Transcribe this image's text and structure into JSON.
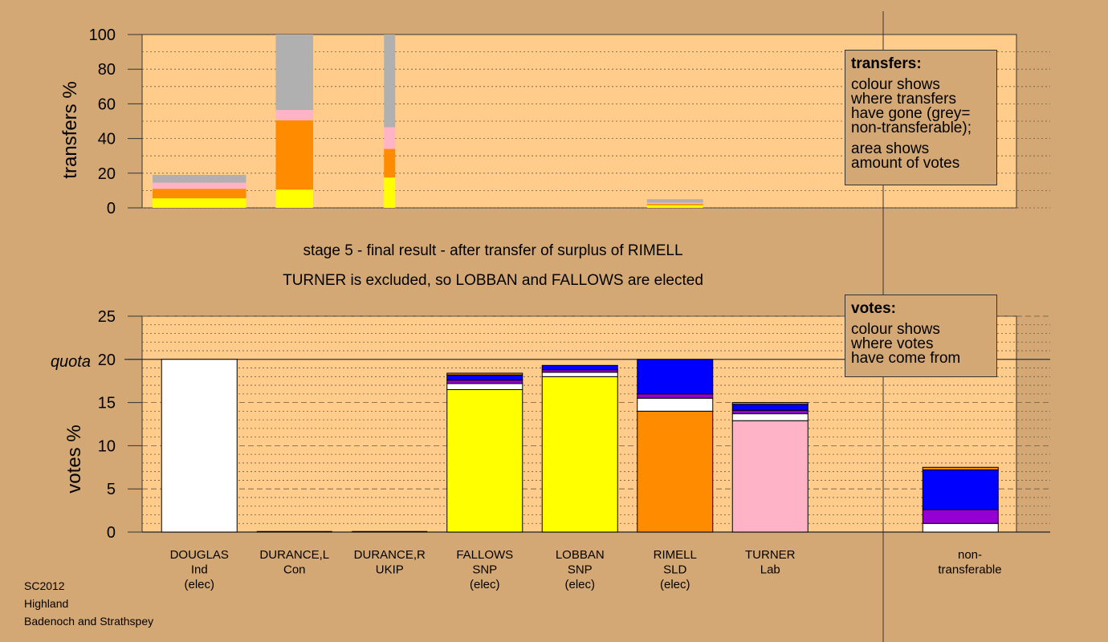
{
  "colors": {
    "background": "#d4a874",
    "plot_bg": "#ffcc8c",
    "grey": "#b0b0b0",
    "pink": "#ffb3c6",
    "orange": "#ff8c00",
    "yellow": "#ffff00",
    "blue": "#0000ff",
    "purple": "#9400d3",
    "white": "#ffffff"
  },
  "title_line1": "stage 5 - final result - after transfer of surplus of RIMELL",
  "title_line2": "TURNER is excluded, so LOBBAN and FALLOWS are elected",
  "candidates": [
    {
      "name": "DOUGLAS",
      "party": "Ind",
      "status": "(elec)"
    },
    {
      "name": "DURANCE,L",
      "party": "Con",
      "status": ""
    },
    {
      "name": "DURANCE,R",
      "party": "UKIP",
      "status": ""
    },
    {
      "name": "FALLOWS",
      "party": "SNP",
      "status": "(elec)"
    },
    {
      "name": "LOBBAN",
      "party": "SNP",
      "status": "(elec)"
    },
    {
      "name": "RIMELL",
      "party": "SLD",
      "status": "(elec)"
    },
    {
      "name": "TURNER",
      "party": "Lab",
      "status": ""
    },
    {
      "name": "",
      "party": "",
      "status": ""
    },
    {
      "name": "non-",
      "party": "transferable",
      "status": ""
    }
  ],
  "legend_transfers": {
    "title": "transfers:",
    "lines1": [
      "colour shows",
      "where transfers",
      "have gone (grey=",
      "non-transferable);"
    ],
    "lines2": [
      "area shows",
      "amount of votes"
    ]
  },
  "legend_votes": {
    "title": "votes:",
    "lines": [
      "colour shows",
      "where votes",
      "have come from"
    ]
  },
  "footer": [
    "SC2012",
    "Highland",
    "Badenoch and Strathspey"
  ],
  "chart_data": [
    {
      "type": "bar",
      "name": "transfers",
      "ylabel": "transfers %",
      "ylim": [
        0,
        100
      ],
      "yticks": [
        0,
        20,
        40,
        60,
        80,
        100
      ],
      "bars": [
        {
          "candidate": "DOUGLAS",
          "share": 1.0,
          "segments": [
            {
              "color": "yellow",
              "value": 5.5
            },
            {
              "color": "orange",
              "value": 5.5
            },
            {
              "color": "pink",
              "value": 3.5
            },
            {
              "color": "grey",
              "value": 4.5
            }
          ]
        },
        {
          "candidate": "DURANCE,L",
          "share": 0.4,
          "segments": [
            {
              "color": "yellow",
              "value": 10.5
            },
            {
              "color": "orange",
              "value": 40
            },
            {
              "color": "pink",
              "value": 6
            },
            {
              "color": "grey",
              "value": 43.5
            }
          ]
        },
        {
          "candidate": "DURANCE,R",
          "share": 0.12,
          "segments": [
            {
              "color": "yellow",
              "value": 17.5
            },
            {
              "color": "orange",
              "value": 16.5
            },
            {
              "color": "pink",
              "value": 12.5
            },
            {
              "color": "grey",
              "value": 53.5
            }
          ]
        },
        {
          "candidate": "RIMELL",
          "share": 0.6,
          "segments": [
            {
              "color": "yellow",
              "value": 1.5
            },
            {
              "color": "orange",
              "value": 0.8
            },
            {
              "color": "pink",
              "value": 0.7
            },
            {
              "color": "grey",
              "value": 2
            }
          ]
        }
      ]
    },
    {
      "type": "bar",
      "name": "votes",
      "ylabel": "votes %",
      "ylim": [
        0,
        25
      ],
      "yticks": [
        0,
        5,
        10,
        15,
        20,
        25
      ],
      "quota": 20,
      "quota_label": "quota",
      "bars": [
        {
          "candidate": "DOUGLAS",
          "segments": [
            {
              "color": "white",
              "value": 20
            }
          ]
        },
        {
          "candidate": "DURANCE,L",
          "segments": []
        },
        {
          "candidate": "DURANCE,R",
          "segments": []
        },
        {
          "candidate": "FALLOWS",
          "segments": [
            {
              "color": "yellow",
              "value": 16.5
            },
            {
              "color": "white",
              "value": 0.7
            },
            {
              "color": "purple",
              "value": 0.4
            },
            {
              "color": "blue",
              "value": 0.6
            },
            {
              "color": "orange",
              "value": 0.2
            }
          ]
        },
        {
          "candidate": "LOBBAN",
          "segments": [
            {
              "color": "yellow",
              "value": 18
            },
            {
              "color": "white",
              "value": 0.5
            },
            {
              "color": "purple",
              "value": 0.3
            },
            {
              "color": "blue",
              "value": 0.5
            }
          ]
        },
        {
          "candidate": "RIMELL",
          "segments": [
            {
              "color": "orange",
              "value": 14
            },
            {
              "color": "white",
              "value": 1.5
            },
            {
              "color": "purple",
              "value": 0.5
            },
            {
              "color": "blue",
              "value": 4
            }
          ]
        },
        {
          "candidate": "TURNER",
          "segments": [
            {
              "color": "pink",
              "value": 12.9
            },
            {
              "color": "white",
              "value": 0.8
            },
            {
              "color": "purple",
              "value": 0.4
            },
            {
              "color": "blue",
              "value": 0.7
            },
            {
              "color": "orange",
              "value": 0.2
            }
          ]
        },
        {
          "candidate": "",
          "segments": []
        },
        {
          "candidate": "non-transferable",
          "segments": [
            {
              "color": "white",
              "value": 1
            },
            {
              "color": "purple",
              "value": 1.6
            },
            {
              "color": "blue",
              "value": 4.6
            },
            {
              "color": "orange",
              "value": 0.3
            }
          ]
        }
      ]
    }
  ]
}
